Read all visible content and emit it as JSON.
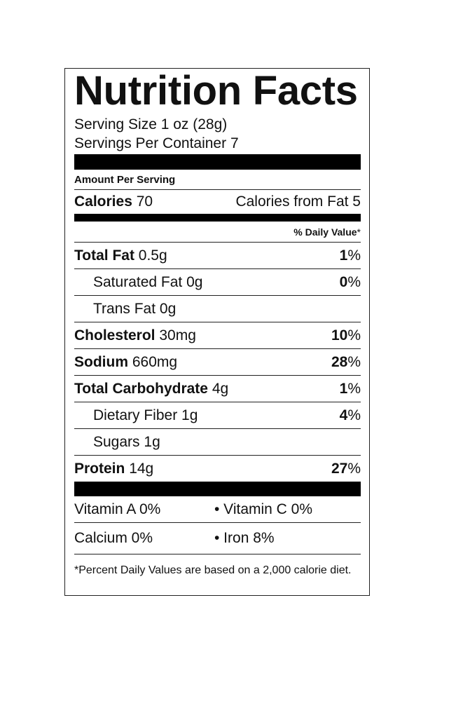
{
  "title": "Nutrition Facts",
  "serving_size": "Serving Size 1 oz (28g)",
  "servings_per_container": "Servings Per Container 7",
  "amount_per_serving": "Amount Per Serving",
  "calories": {
    "label": "Calories",
    "value": "70",
    "from_fat": "Calories from Fat 5"
  },
  "daily_value_header": {
    "label": "% Daily Value",
    "mark": "*"
  },
  "nutrients": [
    {
      "name": "Total Fat",
      "amount": "0.5g",
      "daily_value": "1",
      "unit": "%",
      "subitems": [
        {
          "name": "Saturated Fat",
          "amount": "0g",
          "daily_value": "0",
          "unit": "%"
        },
        {
          "name": "Trans Fat",
          "amount": "0g"
        }
      ]
    },
    {
      "name": "Cholesterol",
      "amount": "30mg",
      "daily_value": "10",
      "unit": "%"
    },
    {
      "name": "Sodium",
      "amount": "660mg",
      "daily_value": "28",
      "unit": "%"
    },
    {
      "name": "Total Carbohydrate",
      "amount": "4g",
      "daily_value": "1",
      "unit": "%",
      "subitems": [
        {
          "name": "Dietary Fiber",
          "amount": "1g",
          "daily_value": "4",
          "unit": "%"
        },
        {
          "name": "Sugars",
          "amount": "1g"
        }
      ]
    },
    {
      "name": "Protein",
      "amount": "14g",
      "daily_value": "27",
      "unit": "%"
    }
  ],
  "vitamins": [
    [
      "Vitamin A 0%",
      "• Vitamin C 0%"
    ],
    [
      "Calcium 0%",
      "• Iron 8%"
    ]
  ],
  "footnote": "*Percent Daily Values are based on a 2,000 calorie diet."
}
